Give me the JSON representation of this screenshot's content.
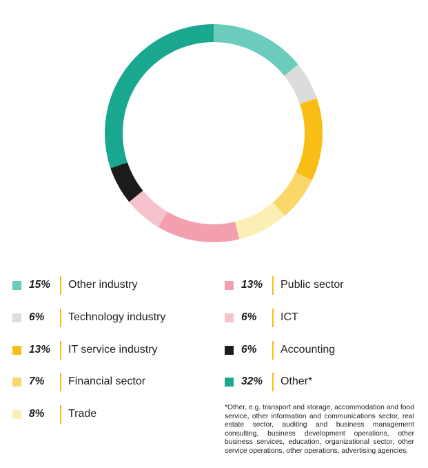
{
  "chart_data": {
    "type": "pie",
    "donut": true,
    "categories": [
      "Other industry",
      "Technology industry",
      "IT service industry",
      "Financial sector",
      "Trade",
      "Public sector",
      "ICT",
      "Accounting",
      "Other*"
    ],
    "values": [
      15,
      6,
      13,
      7,
      8,
      13,
      6,
      6,
      32
    ],
    "percent_labels": [
      "15%",
      "6%",
      "13%",
      "7%",
      "8%",
      "13%",
      "6%",
      "6%",
      "32%"
    ],
    "legend_labels": [
      "Other industry",
      "Technology industry",
      "IT service industry",
      "Financial sector",
      "Trade",
      "Public sector",
      "ICT",
      "Accounting",
      "Other*"
    ],
    "colors": [
      "#6bcbbd",
      "#dcdcdc",
      "#f8be16",
      "#fbd76a",
      "#fbefb6",
      "#f2a0b0",
      "#f6c2cc",
      "#1c1c1c",
      "#19a88f"
    ],
    "legend_placement": "bottom, two columns",
    "footnote": "*Other, e.g. transport and storage, accommodation and food service, other information and communications sector, real estate sector, auditing and business management consulting, business development operations, other business services, education, organizational sector, other service operations, other operations, advertising agencies."
  },
  "colors": {
    "divider": "#f5bd1a",
    "background": "#ffffff"
  }
}
